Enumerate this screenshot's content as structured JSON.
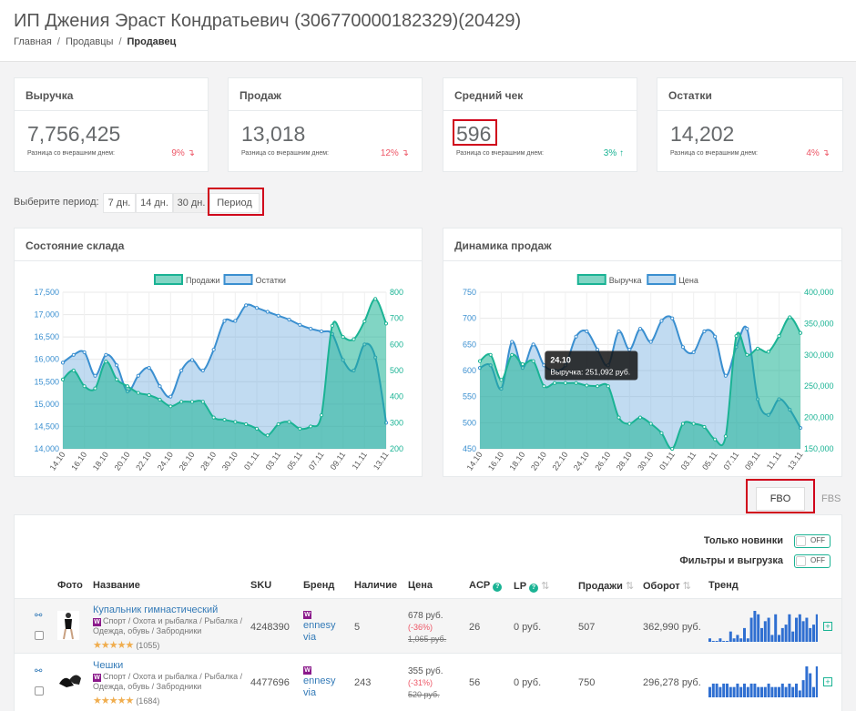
{
  "header": {
    "title": "ИП Джения Эраст Кондратьевич (306770000182329)(20429)",
    "breadcrumb": [
      "Главная",
      "Продавцы",
      "Продавец"
    ]
  },
  "stats": [
    {
      "label": "Выручка",
      "value": "7,756,425",
      "sub": "Разница со вчерашним днем:",
      "pct": "9%",
      "dir": "down"
    },
    {
      "label": "Продаж",
      "value": "13,018",
      "sub": "Разница со вчерашним днем:",
      "pct": "12%",
      "dir": "down"
    },
    {
      "label": "Средний чек",
      "value": "596",
      "sub": "Разница со вчерашним днем:",
      "pct": "3%",
      "dir": "up"
    },
    {
      "label": "Остатки",
      "value": "14,202",
      "sub": "Разница со вчерашним днем:",
      "pct": "4%",
      "dir": "down"
    }
  ],
  "period": {
    "label": "Выберите период:",
    "buttons": [
      "7 дн.",
      "14 дн.",
      "30 дн.",
      "Период"
    ],
    "active_index": 2
  },
  "chart_data": [
    {
      "type": "area",
      "title": "Состояние склада",
      "categories": [
        "14.10",
        "15.10",
        "16.10",
        "17.10",
        "18.10",
        "19.10",
        "20.10",
        "21.10",
        "22.10",
        "23.10",
        "24.10",
        "25.10",
        "26.10",
        "27.10",
        "28.10",
        "29.10",
        "30.10",
        "31.10",
        "01.11",
        "02.11",
        "03.11",
        "04.11",
        "05.11",
        "06.11",
        "07.11",
        "08.11",
        "09.11",
        "10.11",
        "11.11",
        "12.11",
        "13.11"
      ],
      "x_tick_labels": [
        "14.10",
        "16.10",
        "18.10",
        "20.10",
        "22.10",
        "24.10",
        "26.10",
        "28.10",
        "30.10",
        "01.11",
        "03.11",
        "05.11",
        "07.11",
        "09.11",
        "11.11",
        "13.11"
      ],
      "series": [
        {
          "name": "Продажи",
          "axis": "left",
          "color": "#1ab394",
          "values": [
            15550,
            15750,
            15400,
            15350,
            15950,
            15550,
            15400,
            15250,
            15200,
            15100,
            14950,
            15050,
            15050,
            15050,
            14700,
            14650,
            14600,
            14550,
            14450,
            14300,
            14550,
            14600,
            14450,
            14500,
            14750,
            16750,
            16500,
            16450,
            16850,
            17350,
            16800
          ]
        },
        {
          "name": "Остатки",
          "axis": "right",
          "color": "#3a8fd0",
          "values": [
            530,
            560,
            570,
            480,
            560,
            520,
            420,
            480,
            510,
            440,
            400,
            500,
            540,
            500,
            580,
            690,
            690,
            750,
            740,
            725,
            710,
            695,
            675,
            660,
            650,
            640,
            540,
            500,
            600,
            550,
            300
          ]
        }
      ],
      "y_left": {
        "min": 14000,
        "max": 17500,
        "ticks": [
          "14,000",
          "14,500",
          "15,000",
          "15,500",
          "16,000",
          "16,500",
          "17,000",
          "17,500"
        ]
      },
      "y_right": {
        "min": 200,
        "max": 800,
        "ticks": [
          "200",
          "300",
          "400",
          "500",
          "600",
          "700",
          "800"
        ]
      },
      "legend": "top-center",
      "grid": true
    },
    {
      "type": "area",
      "title": "Динамика продаж",
      "categories": [
        "14.10",
        "15.10",
        "16.10",
        "17.10",
        "18.10",
        "19.10",
        "20.10",
        "21.10",
        "22.10",
        "23.10",
        "24.10",
        "25.10",
        "26.10",
        "27.10",
        "28.10",
        "29.10",
        "30.10",
        "31.10",
        "01.11",
        "02.11",
        "03.11",
        "04.11",
        "05.11",
        "06.11",
        "07.11",
        "08.11",
        "09.11",
        "10.11",
        "11.11",
        "12.11",
        "13.11"
      ],
      "x_tick_labels": [
        "14.10",
        "16.10",
        "18.10",
        "20.10",
        "22.10",
        "24.10",
        "26.10",
        "28.10",
        "30.10",
        "01.11",
        "03.11",
        "05.11",
        "07.11",
        "09.11",
        "11.11",
        "13.11"
      ],
      "series": [
        {
          "name": "Выручка",
          "axis": "right",
          "color": "#1ab394",
          "values": [
            290000,
            300000,
            260000,
            300000,
            285000,
            290000,
            250000,
            255000,
            255000,
            255000,
            251092,
            250000,
            250000,
            200000,
            190000,
            200000,
            190000,
            175000,
            150000,
            190000,
            190000,
            185000,
            165000,
            170000,
            330000,
            300000,
            310000,
            305000,
            330000,
            360000,
            335000
          ]
        },
        {
          "name": "Цена",
          "axis": "left",
          "color": "#3a8fd0",
          "values": [
            605,
            610,
            565,
            655,
            605,
            650,
            610,
            600,
            610,
            665,
            675,
            640,
            610,
            675,
            640,
            680,
            655,
            695,
            700,
            645,
            635,
            675,
            665,
            590,
            645,
            680,
            545,
            515,
            545,
            525,
            490
          ]
        }
      ],
      "y_left": {
        "min": 450,
        "max": 750,
        "ticks": [
          "450",
          "500",
          "550",
          "600",
          "650",
          "700",
          "750"
        ]
      },
      "y_right": {
        "min": 150000,
        "max": 400000,
        "ticks": [
          "150,000",
          "200,000",
          "250,000",
          "300,000",
          "350,000",
          "400,000"
        ]
      },
      "tooltip": {
        "title": "24.10",
        "text": "Выручка: 251,092 руб."
      },
      "legend": "top-center",
      "grid": true
    }
  ],
  "fulfillment": {
    "tabs": [
      "FBO",
      "FBS"
    ]
  },
  "filters": [
    {
      "label": "Только новинки",
      "state": "OFF"
    },
    {
      "label": "Фильтры и выгрузка",
      "state": "OFF"
    }
  ],
  "table": {
    "columns": [
      "Фото",
      "Название",
      "SKU",
      "Бренд",
      "Наличие",
      "Цена",
      "ACP",
      "LP",
      "Продажи",
      "Оборот",
      "Тренд"
    ],
    "rows": [
      {
        "name": "Купальник гимнастический",
        "badge": "W",
        "category": "Спорт / Охота и рыбалка / Рыбалка / Одежда, обувь / Забродники",
        "stars": "★★★★★",
        "rating": "(1055)",
        "sku": "4248390",
        "brand": "ennesy via",
        "stock": "5",
        "price": "678 руб.",
        "discount": "(-36%)",
        "old_price": "1,065 руб.",
        "acp": "26",
        "lp": "0 руб.",
        "sales": "507",
        "turnover": "362,990 руб.",
        "trend": [
          1,
          0,
          0,
          1,
          0,
          0,
          3,
          1,
          2,
          1,
          4,
          1,
          7,
          9,
          8,
          4,
          6,
          7,
          2,
          8,
          2,
          4,
          5,
          8,
          3,
          7,
          8,
          6,
          7,
          4,
          5,
          8
        ]
      },
      {
        "name": "Чешки",
        "badge": "W",
        "category": "Спорт / Охота и рыбалка / Рыбалка / Одежда, обувь / Забродники",
        "stars": "★★★★★",
        "rating": "(1684)",
        "sku": "4477696",
        "brand": "ennesy via",
        "stock": "243",
        "price": "355 руб.",
        "discount": "(-31%)",
        "old_price": "520 руб.",
        "acp": "56",
        "lp": "0 руб.",
        "sales": "750",
        "turnover": "296,278 руб.",
        "trend": [
          3,
          4,
          4,
          3,
          4,
          4,
          3,
          3,
          4,
          3,
          4,
          3,
          4,
          4,
          3,
          3,
          3,
          4,
          3,
          3,
          3,
          4,
          3,
          4,
          3,
          4,
          2,
          5,
          9,
          7,
          3,
          9
        ]
      }
    ]
  }
}
